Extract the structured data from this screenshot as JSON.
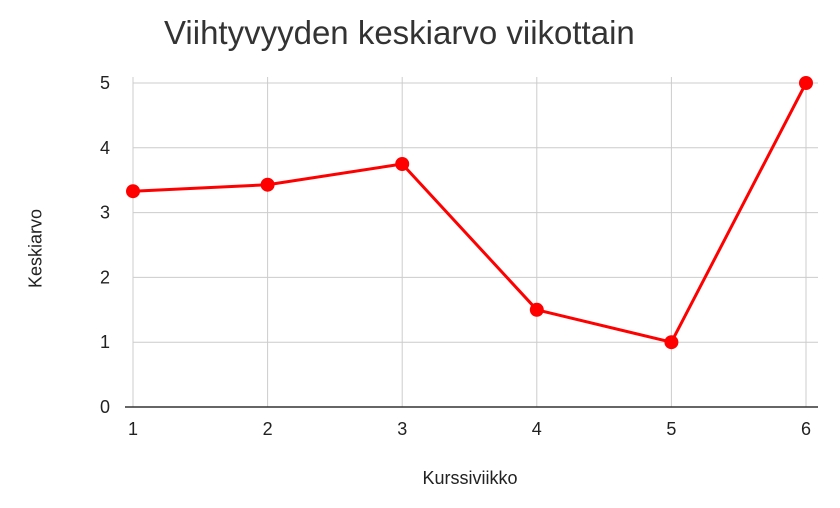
{
  "chart_data": {
    "type": "line",
    "title": "Viihtyvyyden keskiarvo viikottain",
    "xlabel": "Kurssiviikko",
    "ylabel": "Keskiarvo",
    "x": [
      1,
      2,
      3,
      4,
      5,
      6
    ],
    "series": [
      {
        "values": [
          3.33,
          3.43,
          3.75,
          1.5,
          1.0,
          5.0
        ],
        "color": "#ff0000"
      }
    ],
    "xlim": [
      1,
      6
    ],
    "ylim": [
      0,
      5
    ],
    "yticks": [
      0,
      1,
      2,
      3,
      4,
      5
    ],
    "xticks": [
      1,
      2,
      3,
      4,
      5,
      6
    ],
    "grid": true,
    "legend": "none"
  }
}
